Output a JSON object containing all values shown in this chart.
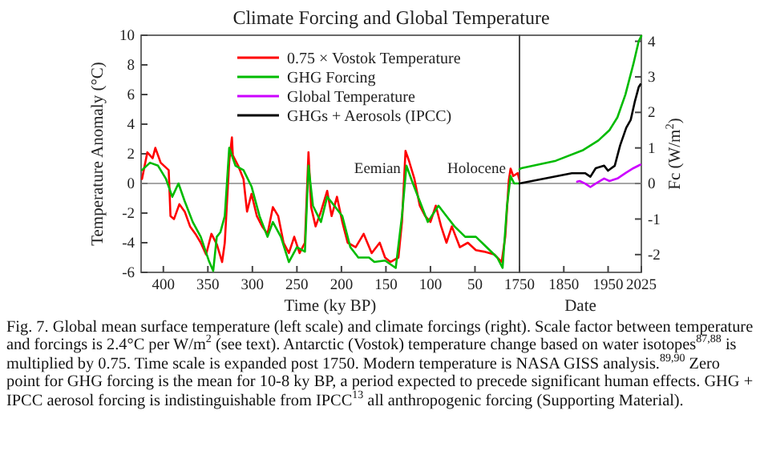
{
  "chart_data": [
    {
      "type": "line",
      "title": "Climate Forcing and Global Temperature",
      "xlabel": "Time (ky BP)",
      "ylabel": "Temperature Anomaly (°C)",
      "xlim": [
        425,
        0
      ],
      "xticks": [
        400,
        350,
        300,
        250,
        200,
        150,
        100,
        50
      ],
      "ylim": [
        -6,
        10
      ],
      "yticks": [
        -6,
        -4,
        -2,
        0,
        2,
        4,
        6,
        8,
        10
      ],
      "legend": "top right",
      "grid": false,
      "ref_lines": [
        {
          "axis": "y",
          "value": 0,
          "color": "#888888"
        }
      ],
      "annotations": [
        {
          "text": "Eemian",
          "x": 128,
          "y": 0.7
        },
        {
          "text": "Holocene",
          "x": 10,
          "y": 0.7
        },
        "Fig. 7. Global mean surface temperature (left scale) and climate forcings (right). Scale factor between temperature and forcings is 2.4°C per W/m$^{2}$ (see text). Antarctic (Vostok) temperature change based on water isotopes$^{87,88}$ is multiplied by 0.75. Time scale is expanded post 1750. Modern  temperature is NASA GISS analysis.$^{89,90}$ Zero point for GHG forcing is the mean for 10-8 ky BP, a period expected to precede significant human effects. GHG + IPCC aerosol forcing is indistinguishable from IPCC$^{13}$ all anthropogenic forcing (Supporting Material)."
      ],
      "series": [
        {
          "name": "0.75 × Vostok Temperature",
          "color": "#ff0000",
          "x": [
            424,
            418,
            412,
            409,
            403,
            394,
            392,
            388,
            382,
            376,
            370,
            364,
            358,
            352,
            346,
            340,
            334,
            331,
            326,
            323,
            322,
            316,
            310,
            306,
            301,
            295,
            289,
            283,
            277,
            271,
            265,
            259,
            253,
            247,
            241,
            237,
            234,
            229,
            223,
            216,
            211,
            205,
            199,
            193,
            184,
            175,
            166,
            157,
            151,
            145,
            136,
            132,
            128,
            124,
            118,
            112,
            106,
            100,
            94,
            88,
            82,
            76,
            67,
            58,
            49,
            40,
            28,
            20,
            16,
            12,
            10,
            7,
            2,
            0
          ],
          "values": [
            0.3,
            2.1,
            1.7,
            2.4,
            1.4,
            0.9,
            -2.2,
            -2.4,
            -1.4,
            -1.9,
            -2.9,
            -3.4,
            -4.0,
            -4.8,
            -3.4,
            -4.1,
            -5.3,
            -4.0,
            1.5,
            3.1,
            1.9,
            1.2,
            0.3,
            -1.9,
            -0.7,
            -2.2,
            -2.9,
            -3.4,
            -1.6,
            -2.2,
            -4.0,
            -4.7,
            -3.6,
            -4.7,
            -4.0,
            2.1,
            -1.6,
            -2.9,
            -1.9,
            -0.5,
            -2.2,
            -0.9,
            -2.6,
            -4.0,
            -4.3,
            -3.4,
            -4.7,
            -4.0,
            -5.0,
            -5.3,
            -5.0,
            -2.6,
            2.2,
            1.5,
            0.3,
            -1.5,
            -2.2,
            -2.6,
            -1.5,
            -2.9,
            -4.0,
            -2.9,
            -4.3,
            -4.0,
            -4.5,
            -4.6,
            -4.8,
            -5.3,
            -3.6,
            0.2,
            1.0,
            0.5,
            0.7,
            0.2
          ]
        },
        {
          "name": "GHG Forcing",
          "color": "#00bb00",
          "x": [
            424,
            415,
            406,
            397,
            390,
            383,
            376,
            367,
            358,
            349,
            344,
            340,
            336,
            331,
            326,
            319,
            310,
            301,
            292,
            283,
            277,
            268,
            259,
            250,
            241,
            237,
            232,
            223,
            216,
            208,
            199,
            190,
            181,
            169,
            163,
            151,
            139,
            132,
            127,
            121,
            112,
            103,
            91,
            82,
            73,
            61,
            49,
            37,
            25,
            19,
            14,
            10,
            6,
            0
          ],
          "values": [
            0.9,
            1.4,
            1.2,
            0.3,
            -0.9,
            0.0,
            -1.2,
            -2.6,
            -3.6,
            -5.2,
            -5.9,
            -3.6,
            -3.3,
            -2.2,
            2.4,
            1.2,
            0.9,
            -0.2,
            -2.2,
            -3.6,
            -2.6,
            -3.6,
            -5.3,
            -4.3,
            -4.6,
            1.2,
            -1.5,
            -2.6,
            -0.9,
            -1.5,
            -2.2,
            -4.3,
            -5.0,
            -5.0,
            -5.3,
            -5.2,
            -5.7,
            -2.2,
            1.2,
            0.2,
            -1.2,
            -2.6,
            -1.5,
            -2.2,
            -2.9,
            -3.6,
            -3.6,
            -4.3,
            -5.0,
            -5.7,
            -1.5,
            0.5,
            0.0,
            0.0
          ]
        }
      ]
    },
    {
      "type": "line",
      "xlabel": "Date",
      "y2label": "Fc (W/m$^{2}$)",
      "xlim": [
        1750,
        2025
      ],
      "xticks": [
        1750,
        1850,
        1950,
        2025
      ],
      "y2lim": [
        -2.5,
        4.17
      ],
      "y2ticks": [
        -2,
        -1,
        0,
        1,
        2,
        3,
        4
      ],
      "grid": false,
      "ref_lines": [
        {
          "axis": "y2",
          "value": 0,
          "color": "#888888"
        }
      ],
      "series": [
        {
          "name": "Global Temperature",
          "color": "#cc00ff",
          "axis": "y2",
          "x": [
            1880,
            1886,
            1898,
            1910,
            1922,
            1941,
            1953,
            1971,
            1989,
            2007,
            2023
          ],
          "values": [
            0.05,
            0.07,
            0,
            -0.1,
            0,
            0.14,
            0.07,
            0.14,
            0.29,
            0.43,
            0.53
          ]
        },
        {
          "name": "GHG Forcing",
          "color": "#00bb00",
          "axis": "y2",
          "x": [
            1750,
            1754,
            1832,
            1892,
            1928,
            1953,
            1971,
            1989,
            2007,
            2019,
            2025
          ],
          "values": [
            0.4,
            0.43,
            0.64,
            0.93,
            1.21,
            1.5,
            1.86,
            2.5,
            3.36,
            4.0,
            4.15
          ]
        },
        {
          "name": "GHGs + Aerosols (IPCC)",
          "color": "#000000",
          "axis": "y2",
          "x": [
            1750,
            1808,
            1868,
            1898,
            1910,
            1922,
            1941,
            1950,
            1965,
            1977,
            1991,
            2001,
            2010,
            2019,
            2023
          ],
          "values": [
            0,
            0.14,
            0.29,
            0.29,
            0.19,
            0.43,
            0.5,
            0.36,
            0.5,
            1.07,
            1.57,
            1.79,
            2.29,
            2.71,
            2.79
          ]
        }
      ]
    }
  ]
}
